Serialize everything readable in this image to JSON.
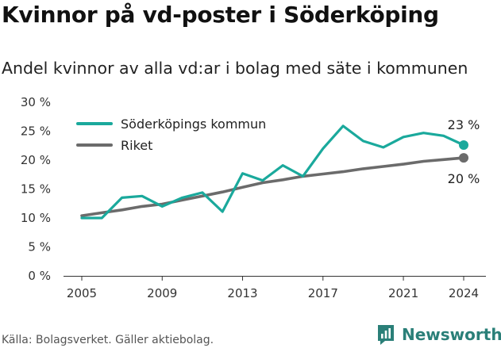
{
  "colors": {
    "series_1": "#1aa99c",
    "series_2": "#6b6b6b",
    "brand": "#2a7f78"
  },
  "chart_data": {
    "type": "line",
    "title": "Kvinnor på vd-poster i Söderköping",
    "subtitle": "Andel kvinnor av alla vd:ar i bolag med säte i kommunen",
    "xlabel": "",
    "ylabel": "",
    "ylim": [
      0,
      30
    ],
    "xlim": [
      2005,
      2024
    ],
    "x_ticks": [
      "2005",
      "2009",
      "2013",
      "2017",
      "2021",
      "2024"
    ],
    "y_ticks": [
      "0 %",
      "5 %",
      "10 %",
      "15 %",
      "20 %",
      "25 %",
      "30 %"
    ],
    "grid": false,
    "legend_position": "top-left",
    "x": [
      2005,
      2006,
      2007,
      2008,
      2009,
      2010,
      2011,
      2012,
      2013,
      2014,
      2015,
      2016,
      2017,
      2018,
      2019,
      2020,
      2021,
      2022,
      2023,
      2024
    ],
    "series": [
      {
        "name": "Söderköpings kommun",
        "values": [
          10.0,
          10.0,
          13.5,
          13.8,
          12.0,
          13.5,
          14.4,
          11.1,
          17.7,
          16.5,
          19.1,
          17.2,
          22.0,
          25.9,
          23.3,
          22.2,
          24.0,
          24.7,
          24.2,
          22.6
        ],
        "end_label": "23 %"
      },
      {
        "name": "Riket",
        "values": [
          10.4,
          10.9,
          11.4,
          12.0,
          12.4,
          13.1,
          13.8,
          14.5,
          15.3,
          16.1,
          16.6,
          17.2,
          17.6,
          18.0,
          18.5,
          18.9,
          19.3,
          19.8,
          20.1,
          20.4
        ],
        "end_label": "20 %"
      }
    ]
  },
  "footer": {
    "source": "Källa: Bolagsverket. Gäller aktiebolag.",
    "brand_name": "Newsworthy",
    "brand_icon": "newsworthy-logo-icon"
  }
}
